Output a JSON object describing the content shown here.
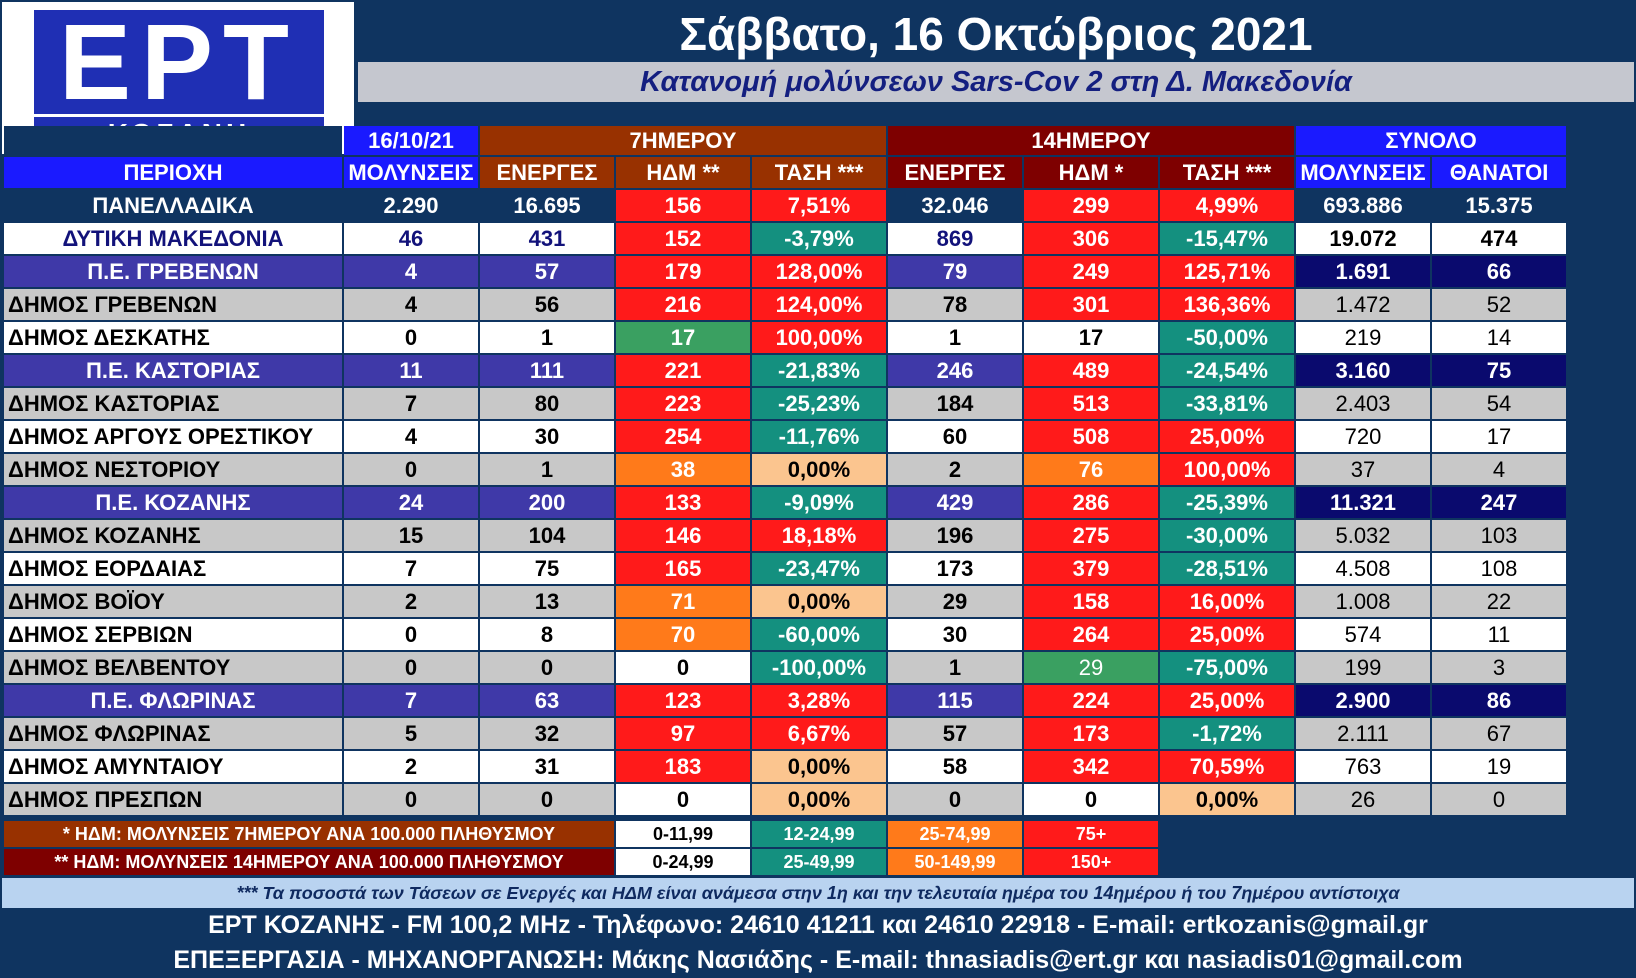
{
  "logo": {
    "main": "ΕΡΤ",
    "sub": "ΚΟΖΑΝΗ"
  },
  "title": "Σάββατο, 16 Οκτώβριος 2021",
  "subtitle": "Κατανομή μολύνσεων Sars-Cov 2 στη Δ. Μακεδονία",
  "group_headers": {
    "date": "16/10/21",
    "week": "7ΗΜΕΡΟΥ",
    "fortnight": "14ΗΜΕΡΟΥ",
    "total": "ΣΥΝΟΛΟ"
  },
  "columns": [
    "ΠΕΡΙΟΧΗ",
    "ΜΟΛΥΝΣΕΙΣ",
    "ΕΝΕΡΓΕΣ",
    "ΗΔΜ **",
    "ΤΑΣΗ ***",
    "ΕΝΕΡΓΕΣ",
    "ΗΔΜ *",
    "ΤΑΣΗ ***",
    "ΜΟΛΥΝΣΕΙΣ",
    "ΘΑΝΑΤΟΙ"
  ],
  "colors": {
    "red": "#ff1a1a",
    "teal": "#14907f",
    "green": "#3aa061",
    "orange": "#ff7a1a",
    "peach": "#fbc58f",
    "white": "#ffffff",
    "gray": "#c8c8c8",
    "navy": "#0f3460",
    "purple": "#3f39a8",
    "darkblue": "#0a0a6e",
    "blue": "#1a1aff",
    "brown": "#983100",
    "maroon": "#7e0000"
  },
  "rows": [
    {
      "type": "national",
      "cells": [
        "ΠΑΝΕΛΛΑΔΙΚΑ",
        "2.290",
        "16.695",
        "156",
        "7,51%",
        "32.046",
        "299",
        "4,99%",
        "693.886",
        "15.375"
      ],
      "status": [
        "red",
        "red",
        "red",
        "red"
      ]
    },
    {
      "type": "region",
      "cells": [
        "ΔΥΤΙΚΗ ΜΑΚΕΔΟΝΙΑ",
        "46",
        "431",
        "152",
        "-3,79%",
        "869",
        "306",
        "-15,47%",
        "19.072",
        "474"
      ],
      "status": [
        "red",
        "teal",
        "red",
        "teal"
      ]
    },
    {
      "type": "unit",
      "cells": [
        "Π.Ε. ΓΡΕΒΕΝΩΝ",
        "4",
        "57",
        "179",
        "128,00%",
        "79",
        "249",
        "125,71%",
        "1.691",
        "66"
      ],
      "status": [
        "red",
        "red",
        "red",
        "red"
      ]
    },
    {
      "type": "muni",
      "shade": "gray",
      "cells": [
        "ΔΗΜΟΣ ΓΡΕΒΕΝΩΝ",
        "4",
        "56",
        "216",
        "124,00%",
        "78",
        "301",
        "136,36%",
        "1.472",
        "52"
      ],
      "status": [
        "red",
        "red",
        "red",
        "red"
      ]
    },
    {
      "type": "muni",
      "shade": "white",
      "cells": [
        "ΔΗΜΟΣ ΔΕΣΚΑΤΗΣ",
        "0",
        "1",
        "17",
        "100,00%",
        "1",
        "17",
        "-50,00%",
        "219",
        "14"
      ],
      "status": [
        "green",
        "red",
        "white",
        "teal"
      ]
    },
    {
      "type": "unit",
      "cells": [
        "Π.Ε. ΚΑΣΤΟΡΙΑΣ",
        "11",
        "111",
        "221",
        "-21,83%",
        "246",
        "489",
        "-24,54%",
        "3.160",
        "75"
      ],
      "status": [
        "red",
        "teal",
        "red",
        "teal"
      ]
    },
    {
      "type": "muni",
      "shade": "gray",
      "cells": [
        "ΔΗΜΟΣ ΚΑΣΤΟΡΙΑΣ",
        "7",
        "80",
        "223",
        "-25,23%",
        "184",
        "513",
        "-33,81%",
        "2.403",
        "54"
      ],
      "status": [
        "red",
        "teal",
        "red",
        "teal"
      ]
    },
    {
      "type": "muni",
      "shade": "white",
      "cells": [
        "ΔΗΜΟΣ ΑΡΓΟΥΣ ΟΡΕΣΤΙΚΟΥ",
        "4",
        "30",
        "254",
        "-11,76%",
        "60",
        "508",
        "25,00%",
        "720",
        "17"
      ],
      "status": [
        "red",
        "teal",
        "red",
        "red"
      ]
    },
    {
      "type": "muni",
      "shade": "gray",
      "cells": [
        "ΔΗΜΟΣ ΝΕΣΤΟΡΙΟΥ",
        "0",
        "1",
        "38",
        "0,00%",
        "2",
        "76",
        "100,00%",
        "37",
        "4"
      ],
      "status": [
        "orange",
        "peach",
        "orange",
        "red"
      ]
    },
    {
      "type": "unit",
      "cells": [
        "Π.Ε. ΚΟΖΑΝΗΣ",
        "24",
        "200",
        "133",
        "-9,09%",
        "429",
        "286",
        "-25,39%",
        "11.321",
        "247"
      ],
      "status": [
        "red",
        "teal",
        "red",
        "teal"
      ]
    },
    {
      "type": "muni",
      "shade": "gray",
      "cells": [
        "ΔΗΜΟΣ ΚΟΖΑΝΗΣ",
        "15",
        "104",
        "146",
        "18,18%",
        "196",
        "275",
        "-30,00%",
        "5.032",
        "103"
      ],
      "status": [
        "red",
        "red",
        "red",
        "teal"
      ]
    },
    {
      "type": "muni",
      "shade": "white",
      "cells": [
        "ΔΗΜΟΣ ΕΟΡΔΑΙΑΣ",
        "7",
        "75",
        "165",
        "-23,47%",
        "173",
        "379",
        "-28,51%",
        "4.508",
        "108"
      ],
      "status": [
        "red",
        "teal",
        "red",
        "teal"
      ]
    },
    {
      "type": "muni",
      "shade": "gray",
      "cells": [
        "ΔΗΜΟΣ ΒΟΪΟΥ",
        "2",
        "13",
        "71",
        "0,00%",
        "29",
        "158",
        "16,00%",
        "1.008",
        "22"
      ],
      "status": [
        "orange",
        "peach",
        "red",
        "red"
      ]
    },
    {
      "type": "muni",
      "shade": "white",
      "cells": [
        "ΔΗΜΟΣ ΣΕΡΒΙΩΝ",
        "0",
        "8",
        "70",
        "-60,00%",
        "30",
        "264",
        "25,00%",
        "574",
        "11"
      ],
      "status": [
        "orange",
        "teal",
        "red",
        "red"
      ]
    },
    {
      "type": "muni",
      "shade": "gray",
      "cells": [
        "ΔΗΜΟΣ ΒΕΛΒΕΝΤΟΥ",
        "0",
        "0",
        "0",
        "-100,00%",
        "1",
        "29",
        "-75,00%",
        "199",
        "3"
      ],
      "status": [
        "white",
        "teal",
        "green",
        "teal"
      ]
    },
    {
      "type": "unit",
      "cells": [
        "Π.Ε. ΦΛΩΡΙΝΑΣ",
        "7",
        "63",
        "123",
        "3,28%",
        "115",
        "224",
        "25,00%",
        "2.900",
        "86"
      ],
      "status": [
        "red",
        "red",
        "red",
        "red"
      ]
    },
    {
      "type": "muni",
      "shade": "gray",
      "cells": [
        "ΔΗΜΟΣ ΦΛΩΡΙΝΑΣ",
        "5",
        "32",
        "97",
        "6,67%",
        "57",
        "173",
        "-1,72%",
        "2.111",
        "67"
      ],
      "status": [
        "red",
        "red",
        "red",
        "teal"
      ]
    },
    {
      "type": "muni",
      "shade": "white",
      "cells": [
        "ΔΗΜΟΣ ΑΜΥΝΤΑΙΟΥ",
        "2",
        "31",
        "183",
        "0,00%",
        "58",
        "342",
        "70,59%",
        "763",
        "19"
      ],
      "status": [
        "red",
        "peach",
        "red",
        "red"
      ]
    },
    {
      "type": "muni",
      "shade": "gray",
      "cells": [
        "ΔΗΜΟΣ ΠΡΕΣΠΩΝ",
        "0",
        "0",
        "0",
        "0,00%",
        "0",
        "0",
        "0,00%",
        "26",
        "0"
      ],
      "status": [
        "white",
        "peach",
        "white",
        "peach"
      ]
    }
  ],
  "legend": [
    {
      "label": "* ΗΔΜ: ΜΟΛΥΝΣΕΙΣ 7ΗΜΕΡΟΥ ΑΝΑ 100.000 ΠΛΗΘΥΣΜΟΥ",
      "ranges": [
        "0-11,99",
        "12-24,99",
        "25-74,99",
        "75+"
      ]
    },
    {
      "label": "** ΗΔΜ: ΜΟΛΥΝΣΕΙΣ 14ΗΜΕΡΟΥ ΑΝΑ 100.000 ΠΛΗΘΥΣΜΟΥ",
      "ranges": [
        "0-24,99",
        "25-49,99",
        "50-149,99",
        "150+"
      ]
    }
  ],
  "footnote": "*** Τα ποσοστά των Τάσεων σε Ενεργές και ΗΔΜ είναι ανάμεσα στην 1η και την τελευταία ημέρα του 14ημέρου ή του 7ημέρου αντίστοιχα",
  "contact": {
    "line1": "ΕΡΤ ΚΟΖΑΝΗΣ - FM 100,2 MHz - Τηλέφωνο:  24610 41211 και 24610 22918 - E-mail: ertkozanis@gmail.gr",
    "line2": "ΕΠΕΞΕΡΓΑΣΙΑ  -  ΜΗΧΑΝΟΡΓΑΝΩΣΗ: Μάκης Νασιάδης  -    E-mail: thnasiadis@ert.gr και nasiadis01@gmail.com"
  }
}
